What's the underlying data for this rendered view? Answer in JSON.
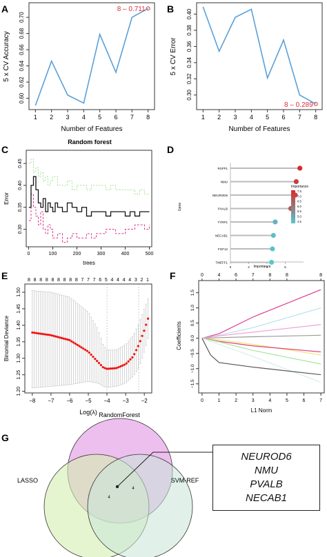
{
  "panels": {
    "A": "A",
    "B": "B",
    "C": "C",
    "D": "D",
    "E": "E",
    "F": "F",
    "G": "G"
  },
  "colors": {
    "line_blue": "#5aa0d8",
    "annot_red": "#e02b3c",
    "rf_black": "#111111",
    "rf_green": "#9be28a",
    "rf_pink": "#e0388c",
    "lasso_red": "#ee1111",
    "venn_rf": "#e7a9e8",
    "venn_lasso": "#d3efb0",
    "venn_svm": "#c9e5d8"
  },
  "chart_data": [
    {
      "id": "A",
      "type": "line",
      "xlabel": "Number of Features",
      "ylabel": "5 x CV Accuracy",
      "x": [
        1,
        2,
        3,
        4,
        5,
        6,
        7,
        8
      ],
      "y": [
        0.591,
        0.646,
        0.604,
        0.594,
        0.679,
        0.632,
        0.7,
        0.711
      ],
      "ylim": [
        0.586,
        0.718
      ],
      "yticks": [
        0.6,
        0.62,
        0.64,
        0.66,
        0.68,
        0.7
      ],
      "ytick_labels": [
        "0.60",
        "0.62",
        "0.64",
        "0.66",
        "0.68",
        "0.70"
      ],
      "annotation": "8 – 0.711"
    },
    {
      "id": "B",
      "type": "line",
      "xlabel": "Number of Features",
      "ylabel": "5 x CV Error",
      "x": [
        1,
        2,
        3,
        4,
        5,
        6,
        7,
        8
      ],
      "y": [
        0.409,
        0.354,
        0.396,
        0.406,
        0.321,
        0.368,
        0.3,
        0.289
      ],
      "ylim": [
        0.282,
        0.414
      ],
      "yticks": [
        0.3,
        0.32,
        0.34,
        0.36,
        0.38,
        0.4
      ],
      "ytick_labels": [
        "0.30",
        "0.32",
        "0.34",
        "0.36",
        "0.38",
        "0.40"
      ],
      "annotation": "8 – 0.289"
    },
    {
      "id": "C",
      "type": "line",
      "title": "Random forest",
      "xlabel": "trees",
      "ylabel": "Error",
      "xlim": [
        -10,
        510
      ],
      "ylim": [
        0.26,
        0.48
      ],
      "xticks": [
        0,
        100,
        200,
        300,
        400,
        500
      ],
      "yticks": [
        0.3,
        0.35,
        0.4,
        0.45
      ],
      "ytick_labels": [
        "0.30",
        "0.35",
        "0.40",
        "0.45"
      ],
      "series": [
        {
          "key": "oob",
          "x": [
            1,
            10,
            20,
            30,
            40,
            50,
            60,
            70,
            80,
            90,
            100,
            110,
            120,
            140,
            160,
            180,
            200,
            220,
            240,
            260,
            280,
            300,
            320,
            340,
            360,
            380,
            400,
            420,
            440,
            460,
            480,
            500
          ],
          "y": [
            0.35,
            0.4,
            0.42,
            0.39,
            0.36,
            0.35,
            0.37,
            0.34,
            0.36,
            0.35,
            0.34,
            0.36,
            0.35,
            0.34,
            0.36,
            0.35,
            0.34,
            0.35,
            0.33,
            0.34,
            0.34,
            0.34,
            0.33,
            0.34,
            0.34,
            0.34,
            0.33,
            0.34,
            0.33,
            0.34,
            0.34,
            0.34
          ]
        },
        {
          "key": "class1",
          "x": [
            1,
            10,
            20,
            30,
            40,
            50,
            60,
            70,
            80,
            90,
            100,
            120,
            140,
            160,
            180,
            200,
            220,
            240,
            260,
            280,
            300,
            320,
            340,
            360,
            380,
            400,
            420,
            440,
            460,
            480,
            500
          ],
          "y": [
            0.45,
            0.46,
            0.43,
            0.44,
            0.42,
            0.43,
            0.41,
            0.42,
            0.4,
            0.41,
            0.42,
            0.4,
            0.4,
            0.41,
            0.39,
            0.4,
            0.4,
            0.39,
            0.4,
            0.4,
            0.4,
            0.39,
            0.4,
            0.39,
            0.39,
            0.39,
            0.39,
            0.38,
            0.39,
            0.38,
            0.38
          ]
        },
        {
          "key": "class2",
          "x": [
            1,
            10,
            20,
            30,
            40,
            50,
            60,
            70,
            80,
            90,
            100,
            120,
            140,
            160,
            180,
            200,
            220,
            240,
            260,
            280,
            300,
            320,
            340,
            360,
            380,
            400,
            420,
            440,
            460,
            480,
            500
          ],
          "y": [
            0.32,
            0.38,
            0.35,
            0.33,
            0.31,
            0.34,
            0.3,
            0.29,
            0.31,
            0.3,
            0.28,
            0.29,
            0.27,
            0.28,
            0.29,
            0.28,
            0.28,
            0.29,
            0.28,
            0.29,
            0.29,
            0.3,
            0.3,
            0.29,
            0.29,
            0.3,
            0.3,
            0.31,
            0.31,
            0.3,
            0.31
          ]
        }
      ]
    },
    {
      "id": "D",
      "type": "scatter",
      "xlabel": "Importance",
      "ylabel": "Gene",
      "categories": [
        "RXFP1",
        "NMU",
        "NEUROD6",
        "PVALB",
        "TYRP1",
        "NECAB1",
        "FGF12",
        "TMEFF1"
      ],
      "values": [
        7.6,
        7.2,
        7.1,
        6.6,
        4.9,
        4.7,
        4.6,
        4.5
      ],
      "xlim": [
        0,
        8
      ],
      "xticks": [
        0,
        2,
        4,
        6
      ],
      "legend_title": "Importance",
      "legend_ticks": [
        "7.5",
        "7.0",
        "6.5",
        "6.0",
        "5.5",
        "5.0",
        "4.5"
      ],
      "legend_position": "right"
    },
    {
      "id": "E",
      "type": "scatter",
      "xlabel": "Log(λ)",
      "ylabel": "Binomial Deviance",
      "xlim": [
        -8.4,
        -1.6
      ],
      "ylim": [
        1.195,
        1.525
      ],
      "xticks": [
        -8,
        -7,
        -6,
        -5,
        -4,
        -3,
        -2
      ],
      "xtick_labels": [
        "−8",
        "−7",
        "−6",
        "−5",
        "−4",
        "−3",
        "−2"
      ],
      "yticks": [
        1.2,
        1.25,
        1.3,
        1.35,
        1.4,
        1.45,
        1.5
      ],
      "ytick_labels": [
        "1.20",
        "1.25",
        "1.30",
        "1.35",
        "1.40",
        "1.45",
        "1.50"
      ],
      "top_ticks": [
        "8",
        "8",
        "8",
        "8",
        "8",
        "8",
        "8",
        "8",
        "8",
        "7",
        "7",
        "7",
        "6",
        "5",
        "4",
        "4",
        "4",
        "4",
        "3",
        "2",
        "1"
      ],
      "lambda_min": -4.0,
      "lambda_1se": -2.3,
      "curve_x": [
        -8.0,
        -7.0,
        -6.0,
        -5.0,
        -4.5,
        -4.2,
        -4.0,
        -3.5,
        -3.0,
        -2.6,
        -2.3,
        -2.0,
        -1.8
      ],
      "curve_y": [
        1.378,
        1.37,
        1.355,
        1.32,
        1.29,
        1.272,
        1.268,
        1.27,
        1.282,
        1.305,
        1.34,
        1.385,
        1.42
      ],
      "err_lo_ref": [
        1.21,
        1.215,
        1.22,
        1.23,
        1.225,
        1.215,
        1.212,
        1.215,
        1.225,
        1.245,
        1.27,
        1.32,
        1.36
      ],
      "err_hi_ref": [
        1.505,
        1.5,
        1.485,
        1.44,
        1.39,
        1.34,
        1.325,
        1.325,
        1.342,
        1.368,
        1.405,
        1.45,
        1.48
      ]
    },
    {
      "id": "F",
      "type": "line",
      "xlabel": "L1 Norm",
      "ylabel": "Coefficients",
      "xlim": [
        -0.2,
        7.2
      ],
      "ylim": [
        -1.8,
        1.9
      ],
      "xticks": [
        0,
        1,
        2,
        3,
        4,
        5,
        6,
        7
      ],
      "yticks": [
        -1.5,
        -1.0,
        -0.5,
        0.0,
        0.5,
        1.0,
        1.5
      ],
      "ytick_labels": [
        "−1.5",
        "−1.0",
        "−0.5",
        "0.0",
        "0.5",
        "1.0",
        "1.5"
      ],
      "top_ticks": [
        "0",
        "4",
        "6",
        "7",
        "8",
        "8",
        "8"
      ],
      "top_tick_x": [
        0,
        1,
        2,
        3,
        4,
        5,
        7
      ],
      "series": [
        {
          "color": "#e0388c",
          "x": [
            0,
            1,
            3,
            7
          ],
          "y": [
            0,
            0.15,
            0.7,
            1.6
          ]
        },
        {
          "color": "#b7e0f0",
          "x": [
            0,
            1,
            3,
            7
          ],
          "y": [
            0,
            0.1,
            0.35,
            1.0
          ]
        },
        {
          "color": "#f0a0d8",
          "x": [
            0,
            1,
            3,
            7
          ],
          "y": [
            0,
            0.08,
            0.2,
            0.45
          ]
        },
        {
          "color": "#999999",
          "x": [
            0,
            1,
            3,
            7
          ],
          "y": [
            0,
            0.02,
            0.05,
            0.1
          ]
        },
        {
          "color": "#f5e27a",
          "x": [
            0,
            1,
            3,
            7
          ],
          "y": [
            0,
            -0.05,
            -0.2,
            -0.55
          ]
        },
        {
          "color": "#e04080",
          "x": [
            0,
            1,
            3,
            7
          ],
          "y": [
            0,
            -0.1,
            -0.25,
            -0.45
          ]
        },
        {
          "color": "#a8e6a0",
          "x": [
            0,
            1,
            3,
            7
          ],
          "y": [
            0,
            -0.12,
            -0.4,
            -0.85
          ]
        },
        {
          "color": "#d4f0ec",
          "x": [
            0,
            1,
            3,
            7
          ],
          "y": [
            0,
            -0.2,
            -0.6,
            -1.45
          ]
        },
        {
          "color": "#555555",
          "x": [
            0,
            0.5,
            1,
            3,
            7
          ],
          "y": [
            0,
            -0.55,
            -0.8,
            -0.95,
            -1.2
          ]
        }
      ]
    }
  ],
  "venn": {
    "labels": [
      "RandomForest",
      "LASSO",
      "SVM-REF"
    ],
    "counts": [
      {
        "value": "4"
      },
      {
        "value": "4"
      }
    ],
    "gene_box": [
      "NEUROD6",
      "NMU",
      "PVALB",
      "NECAB1"
    ]
  }
}
